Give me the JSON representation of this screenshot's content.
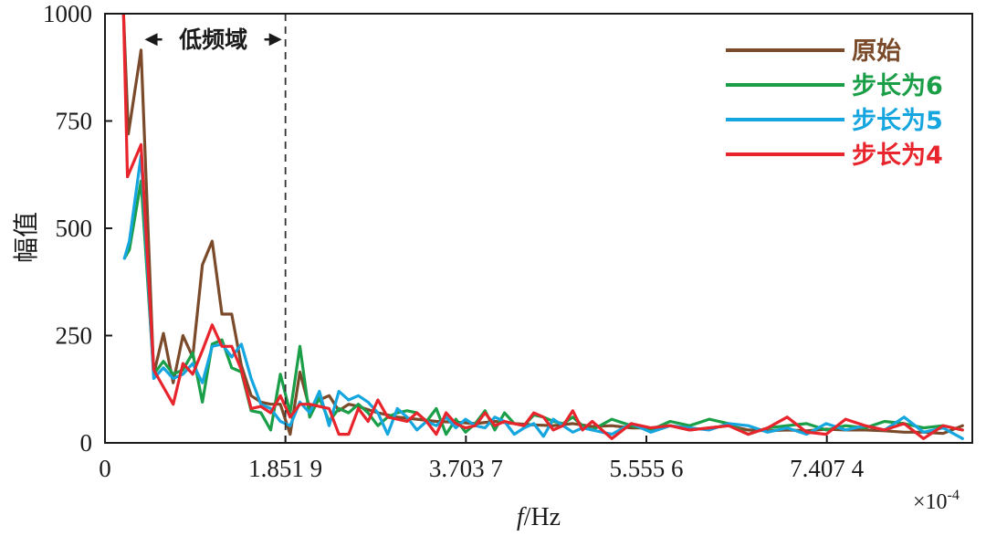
{
  "chart_data": {
    "type": "line",
    "ylabel": "幅值",
    "xlabel_italic": "f",
    "xlabel_unit": "/Hz",
    "x_multiplier": "×10",
    "x_multiplier_exp": "-4",
    "xlim": [
      0,
      8.9
    ],
    "ylim": [
      0,
      1000
    ],
    "xticks": [
      {
        "value": 0,
        "label": "0"
      },
      {
        "value": 1.8519,
        "label": "1.851 9"
      },
      {
        "value": 3.7037,
        "label": "3.703 7"
      },
      {
        "value": 5.5556,
        "label": "5.555 6"
      },
      {
        "value": 7.4074,
        "label": "7.407 4"
      }
    ],
    "yticks": [
      {
        "value": 0,
        "label": "0"
      },
      {
        "value": 250,
        "label": "250"
      },
      {
        "value": 500,
        "label": "500"
      },
      {
        "value": 750,
        "label": "750"
      },
      {
        "value": 1000,
        "label": "1000"
      }
    ],
    "annotation": {
      "label": "低频域",
      "x_start": 0.37,
      "x_end": 1.8519,
      "y": 940
    },
    "legend_position": "top-right",
    "series": [
      {
        "name": "原始",
        "color": "#7a4a2a",
        "x": [
          0.19,
          0.24,
          0.37,
          0.5,
          0.6,
          0.7,
          0.8,
          0.9,
          1.0,
          1.1,
          1.2,
          1.3,
          1.4,
          1.5,
          1.6,
          1.7,
          1.8,
          1.9,
          2.0,
          2.1,
          2.2,
          2.3,
          2.4,
          2.5,
          2.6,
          2.8,
          3.0,
          3.2,
          3.4,
          3.6,
          3.8,
          4.0,
          4.2,
          4.4,
          4.6,
          4.8,
          5.0,
          5.2,
          5.4,
          5.6,
          5.8,
          6.0,
          6.2,
          6.4,
          6.6,
          6.8,
          7.0,
          7.2,
          7.4,
          7.6,
          7.8,
          8.0,
          8.2,
          8.4,
          8.6,
          8.8
        ],
        "y": [
          1000,
          720,
          915,
          160,
          255,
          140,
          250,
          200,
          415,
          470,
          300,
          300,
          180,
          110,
          95,
          90,
          90,
          20,
          165,
          80,
          100,
          110,
          75,
          90,
          85,
          70,
          60,
          55,
          50,
          48,
          45,
          50,
          45,
          42,
          40,
          45,
          38,
          40,
          35,
          35,
          40,
          30,
          35,
          40,
          30,
          28,
          30,
          28,
          32,
          30,
          30,
          28,
          25,
          25,
          22,
          40
        ]
      },
      {
        "name": "步长为6",
        "color": "#1a9e48",
        "x": [
          0.2,
          0.25,
          0.37,
          0.5,
          0.6,
          0.7,
          0.8,
          0.9,
          1.0,
          1.1,
          1.2,
          1.3,
          1.4,
          1.5,
          1.6,
          1.7,
          1.8,
          1.9,
          2.0,
          2.1,
          2.2,
          2.3,
          2.4,
          2.5,
          2.6,
          2.7,
          2.8,
          2.9,
          3.0,
          3.1,
          3.2,
          3.3,
          3.4,
          3.5,
          3.6,
          3.7,
          3.8,
          3.9,
          4.0,
          4.1,
          4.2,
          4.3,
          4.4,
          4.5,
          4.6,
          4.7,
          4.8,
          4.9,
          5.0,
          5.2,
          5.4,
          5.6,
          5.8,
          6.0,
          6.2,
          6.4,
          6.6,
          6.8,
          7.0,
          7.2,
          7.4,
          7.6,
          7.8,
          8.0,
          8.2,
          8.4,
          8.6,
          8.8
        ],
        "y": [
          430,
          450,
          610,
          160,
          190,
          160,
          170,
          210,
          95,
          230,
          240,
          175,
          165,
          75,
          70,
          30,
          160,
          70,
          225,
          60,
          105,
          50,
          80,
          70,
          90,
          70,
          40,
          60,
          70,
          75,
          70,
          50,
          80,
          20,
          55,
          25,
          45,
          75,
          30,
          70,
          45,
          40,
          65,
          60,
          50,
          45,
          60,
          40,
          30,
          55,
          40,
          30,
          50,
          40,
          55,
          45,
          20,
          35,
          40,
          45,
          30,
          40,
          35,
          50,
          45,
          35,
          40,
          30
        ]
      },
      {
        "name": "步长为5",
        "color": "#16a6df",
        "x": [
          0.2,
          0.25,
          0.37,
          0.5,
          0.6,
          0.7,
          0.8,
          0.9,
          1.0,
          1.1,
          1.2,
          1.3,
          1.4,
          1.5,
          1.6,
          1.7,
          1.8,
          1.9,
          2.0,
          2.1,
          2.2,
          2.3,
          2.4,
          2.5,
          2.6,
          2.7,
          2.8,
          2.9,
          3.0,
          3.1,
          3.2,
          3.3,
          3.4,
          3.5,
          3.6,
          3.7,
          3.8,
          3.9,
          4.0,
          4.1,
          4.2,
          4.3,
          4.4,
          4.5,
          4.6,
          4.7,
          4.8,
          4.9,
          5.0,
          5.2,
          5.4,
          5.6,
          5.8,
          6.0,
          6.2,
          6.4,
          6.6,
          6.8,
          7.0,
          7.2,
          7.4,
          7.6,
          7.8,
          8.0,
          8.2,
          8.4,
          8.6,
          8.8
        ],
        "y": [
          430,
          470,
          670,
          150,
          175,
          150,
          160,
          185,
          140,
          225,
          230,
          200,
          230,
          150,
          90,
          80,
          50,
          40,
          95,
          70,
          120,
          40,
          120,
          100,
          110,
          95,
          70,
          20,
          80,
          60,
          30,
          50,
          40,
          60,
          35,
          55,
          40,
          35,
          60,
          50,
          20,
          35,
          45,
          15,
          55,
          40,
          25,
          35,
          30,
          20,
          45,
          25,
          40,
          35,
          30,
          45,
          40,
          25,
          35,
          20,
          45,
          30,
          40,
          30,
          60,
          25,
          35,
          10
        ]
      },
      {
        "name": "步长为4",
        "color": "#e8242c",
        "x": [
          0.19,
          0.23,
          0.37,
          0.5,
          0.6,
          0.7,
          0.8,
          0.9,
          1.0,
          1.1,
          1.2,
          1.3,
          1.4,
          1.5,
          1.6,
          1.7,
          1.8,
          1.9,
          2.0,
          2.1,
          2.2,
          2.3,
          2.4,
          2.5,
          2.6,
          2.7,
          2.8,
          2.9,
          3.0,
          3.1,
          3.2,
          3.3,
          3.4,
          3.5,
          3.6,
          3.7,
          3.8,
          3.9,
          4.0,
          4.1,
          4.2,
          4.3,
          4.4,
          4.5,
          4.6,
          4.7,
          4.8,
          4.9,
          5.0,
          5.2,
          5.4,
          5.6,
          5.8,
          6.0,
          6.2,
          6.4,
          6.6,
          6.8,
          7.0,
          7.2,
          7.4,
          7.6,
          7.8,
          8.0,
          8.2,
          8.4,
          8.6,
          8.8
        ],
        "y": [
          1000,
          620,
          695,
          170,
          130,
          90,
          185,
          160,
          215,
          275,
          225,
          225,
          170,
          80,
          85,
          70,
          110,
          60,
          90,
          90,
          85,
          80,
          20,
          20,
          80,
          50,
          100,
          60,
          55,
          50,
          70,
          50,
          20,
          70,
          45,
          35,
          40,
          70,
          40,
          50,
          45,
          40,
          70,
          60,
          30,
          40,
          75,
          30,
          50,
          10,
          45,
          35,
          40,
          30,
          35,
          40,
          20,
          35,
          60,
          25,
          20,
          55,
          40,
          30,
          45,
          10,
          40,
          30
        ]
      }
    ]
  }
}
